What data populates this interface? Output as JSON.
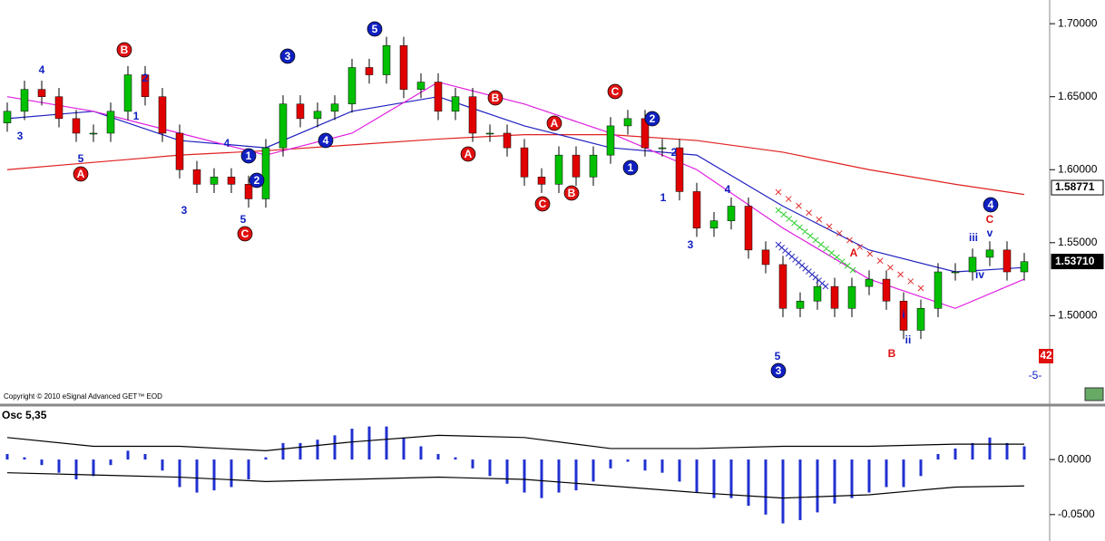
{
  "chart_data": [
    {
      "type": "candlestick",
      "copyright": "Copyright © 2010 eSignal Advanced GET™ EOD",
      "up_color": "#00c000",
      "down_color": "#e00000",
      "open": [
        1.632,
        1.64,
        1.655,
        1.65,
        1.635,
        1.625,
        1.625,
        1.64,
        1.665,
        1.65,
        1.625,
        1.6,
        1.59,
        1.595,
        1.59,
        1.58,
        1.615,
        1.645,
        1.635,
        1.64,
        1.645,
        1.67,
        1.665,
        1.685,
        1.655,
        1.66,
        1.64,
        1.65,
        1.625,
        1.625,
        1.615,
        1.595,
        1.59,
        1.61,
        1.595,
        1.61,
        1.63,
        1.635,
        1.615,
        1.615,
        1.585,
        1.56,
        1.565,
        1.575,
        1.545,
        1.535,
        1.505,
        1.51,
        1.52,
        1.505,
        1.52,
        1.525,
        1.51,
        1.49,
        1.505,
        1.53,
        1.53,
        1.54,
        1.545,
        1.53
      ],
      "high": [
        1.646,
        1.661,
        1.661,
        1.656,
        1.641,
        1.631,
        1.646,
        1.671,
        1.671,
        1.656,
        1.631,
        1.606,
        1.601,
        1.601,
        1.596,
        1.621,
        1.651,
        1.651,
        1.646,
        1.651,
        1.676,
        1.676,
        1.691,
        1.691,
        1.666,
        1.666,
        1.656,
        1.656,
        1.631,
        1.631,
        1.621,
        1.601,
        1.616,
        1.616,
        1.616,
        1.636,
        1.641,
        1.641,
        1.621,
        1.621,
        1.591,
        1.571,
        1.581,
        1.581,
        1.551,
        1.541,
        1.516,
        1.526,
        1.526,
        1.526,
        1.531,
        1.531,
        1.516,
        1.511,
        1.536,
        1.536,
        1.546,
        1.551,
        1.551,
        1.543
      ],
      "low": [
        1.626,
        1.634,
        1.644,
        1.629,
        1.619,
        1.619,
        1.619,
        1.634,
        1.644,
        1.619,
        1.594,
        1.584,
        1.584,
        1.584,
        1.574,
        1.574,
        1.609,
        1.629,
        1.629,
        1.634,
        1.639,
        1.659,
        1.659,
        1.649,
        1.649,
        1.634,
        1.634,
        1.619,
        1.619,
        1.609,
        1.589,
        1.584,
        1.584,
        1.589,
        1.589,
        1.604,
        1.624,
        1.609,
        1.609,
        1.579,
        1.554,
        1.554,
        1.559,
        1.539,
        1.529,
        1.499,
        1.499,
        1.504,
        1.499,
        1.499,
        1.514,
        1.504,
        1.484,
        1.484,
        1.499,
        1.524,
        1.524,
        1.534,
        1.524,
        1.524
      ],
      "close": [
        1.64,
        1.655,
        1.65,
        1.635,
        1.625,
        1.625,
        1.64,
        1.665,
        1.65,
        1.625,
        1.6,
        1.59,
        1.595,
        1.59,
        1.58,
        1.615,
        1.645,
        1.635,
        1.64,
        1.645,
        1.67,
        1.665,
        1.685,
        1.655,
        1.66,
        1.64,
        1.65,
        1.625,
        1.625,
        1.615,
        1.595,
        1.59,
        1.61,
        1.595,
        1.61,
        1.63,
        1.635,
        1.615,
        1.615,
        1.585,
        1.56,
        1.565,
        1.575,
        1.545,
        1.535,
        1.505,
        1.51,
        1.52,
        1.505,
        1.52,
        1.525,
        1.51,
        1.49,
        1.505,
        1.53,
        1.53,
        1.54,
        1.545,
        1.53,
        1.537
      ],
      "series": [
        {
          "color": "#e02020",
          "x": [
            0,
            5,
            10,
            15,
            20,
            25,
            30,
            35,
            40,
            45,
            50,
            55,
            59
          ],
          "values": [
            1.6,
            1.605,
            1.61,
            1.613,
            1.617,
            1.621,
            1.624,
            1.624,
            1.62,
            1.612,
            1.6,
            1.59,
            1.583
          ]
        },
        {
          "color": "#2020c0",
          "x": [
            0,
            5,
            10,
            15,
            20,
            25,
            30,
            35,
            40,
            45,
            50,
            55,
            59
          ],
          "values": [
            1.635,
            1.64,
            1.62,
            1.615,
            1.64,
            1.65,
            1.63,
            1.615,
            1.61,
            1.575,
            1.545,
            1.53,
            1.533
          ]
        },
        {
          "color": "#e020e0",
          "x": [
            0,
            5,
            10,
            15,
            20,
            25,
            30,
            35,
            40,
            45,
            50,
            55,
            59
          ],
          "values": [
            1.65,
            1.64,
            1.625,
            1.61,
            1.625,
            1.66,
            1.645,
            1.625,
            1.6,
            1.56,
            1.525,
            1.505,
            1.525
          ]
        }
      ],
      "ylim": [
        1.44,
        1.715
      ],
      "yticks": [
        {
          "value": 1.7,
          "label": "1.70000"
        },
        {
          "value": 1.65,
          "label": "1.65000"
        },
        {
          "value": 1.6,
          "label": "1.60000"
        },
        {
          "value": 1.55,
          "label": "1.55000"
        },
        {
          "value": 1.5,
          "label": "1.50000"
        }
      ],
      "price_tags": [
        1.58771,
        {
          "value": 1.5371,
          "label": "1.53710"
        }
      ],
      "annotations": [
        "3",
        "4",
        "5",
        "A",
        "B",
        "2",
        "1",
        "3",
        "4",
        "5",
        "C",
        "1",
        "2",
        "3",
        "4",
        "5",
        "B",
        "A",
        "A",
        "C",
        "B",
        "C",
        "2",
        "1",
        "2",
        "1",
        "3",
        "4",
        "5",
        "3",
        "A",
        "B",
        "i",
        "ii",
        "iii",
        "iv",
        "v",
        "C",
        "4"
      ],
      "labels": [
        "42",
        "-5-"
      ]
    },
    {
      "type": "bar",
      "title": "Osc 5,35",
      "color": "#2030d0",
      "values": [
        0.005,
        0.002,
        -0.005,
        -0.012,
        -0.018,
        -0.015,
        -0.005,
        0.008,
        0.005,
        -0.01,
        -0.025,
        -0.03,
        -0.028,
        -0.025,
        -0.018,
        0.002,
        0.015,
        0.015,
        0.018,
        0.022,
        0.028,
        0.03,
        0.03,
        0.02,
        0.012,
        0.005,
        0.002,
        -0.008,
        -0.015,
        -0.022,
        -0.03,
        -0.035,
        -0.03,
        -0.028,
        -0.02,
        -0.008,
        -0.002,
        -0.01,
        -0.012,
        -0.02,
        -0.03,
        -0.035,
        -0.035,
        -0.042,
        -0.05,
        -0.058,
        -0.055,
        -0.048,
        -0.04,
        -0.035,
        -0.03,
        -0.025,
        -0.025,
        -0.015,
        0.005,
        0.01,
        0.015,
        0.02,
        0.015,
        0.012
      ],
      "series": [
        {
          "color": "#000000",
          "x": [
            0,
            5,
            10,
            15,
            20,
            25,
            30,
            35,
            40,
            45,
            50,
            55,
            59
          ],
          "values": [
            0.02,
            0.012,
            0.012,
            0.008,
            0.016,
            0.022,
            0.02,
            0.01,
            0.01,
            0.012,
            0.012,
            0.014,
            0.014
          ]
        },
        {
          "color": "#000000",
          "x": [
            0,
            5,
            10,
            15,
            20,
            25,
            30,
            35,
            40,
            45,
            50,
            55,
            59
          ],
          "values": [
            -0.012,
            -0.014,
            -0.016,
            -0.02,
            -0.018,
            -0.016,
            -0.018,
            -0.024,
            -0.03,
            -0.035,
            -0.032,
            -0.025,
            -0.024
          ]
        }
      ],
      "ylim": [
        -0.074,
        0.047
      ],
      "yticks": [
        {
          "value": 0,
          "label": "0.0000"
        },
        {
          "value": -0.05,
          "label": "-0.0500"
        }
      ]
    }
  ]
}
